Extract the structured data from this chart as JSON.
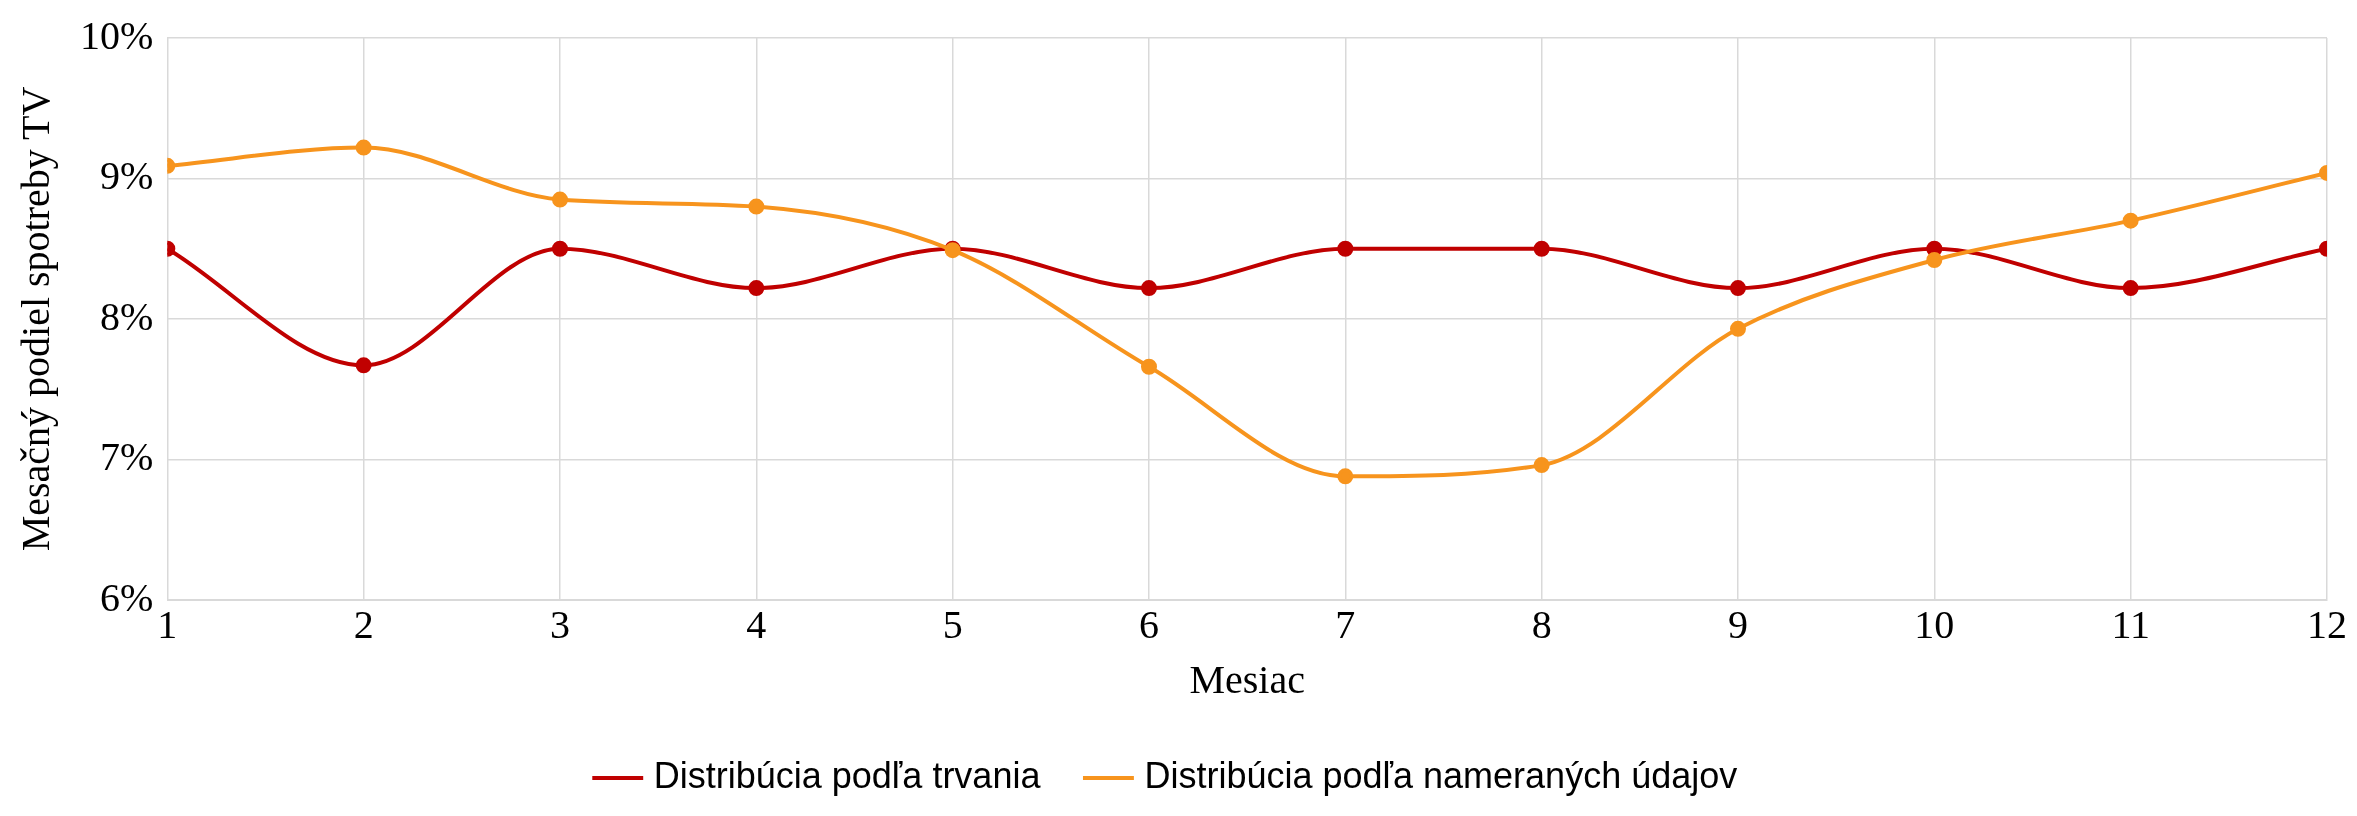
{
  "chart_data": {
    "type": "line",
    "xlabel": "Mesiac",
    "ylabel": "Mesačný podiel spotreby TV",
    "x": [
      1,
      2,
      3,
      4,
      5,
      6,
      7,
      8,
      9,
      10,
      11,
      12
    ],
    "series": [
      {
        "name": "Distribúcia podľa trvania",
        "color": "#c00000",
        "values": [
          8.5,
          7.67,
          8.5,
          8.22,
          8.5,
          8.22,
          8.5,
          8.5,
          8.22,
          8.5,
          8.22,
          8.5
        ]
      },
      {
        "name": "Distribúcia podľa nameraných údajov",
        "color": "#f7941d",
        "values": [
          9.09,
          9.22,
          8.85,
          8.8,
          8.49,
          7.66,
          6.88,
          6.96,
          7.93,
          8.42,
          8.7,
          9.04
        ]
      }
    ],
    "xlim": [
      1,
      12
    ],
    "xticks": [
      1,
      2,
      3,
      4,
      5,
      6,
      7,
      8,
      9,
      10,
      11,
      12
    ],
    "ylim": [
      6,
      10
    ],
    "yticks": [
      {
        "value": 6,
        "label": "6%"
      },
      {
        "value": 7,
        "label": "7%"
      },
      {
        "value": 8,
        "label": "8%"
      },
      {
        "value": 9,
        "label": "9%"
      },
      {
        "value": 10,
        "label": "10%"
      }
    ],
    "grid": true,
    "legend": "bottom",
    "marker": "circle",
    "line_style": "solid"
  }
}
